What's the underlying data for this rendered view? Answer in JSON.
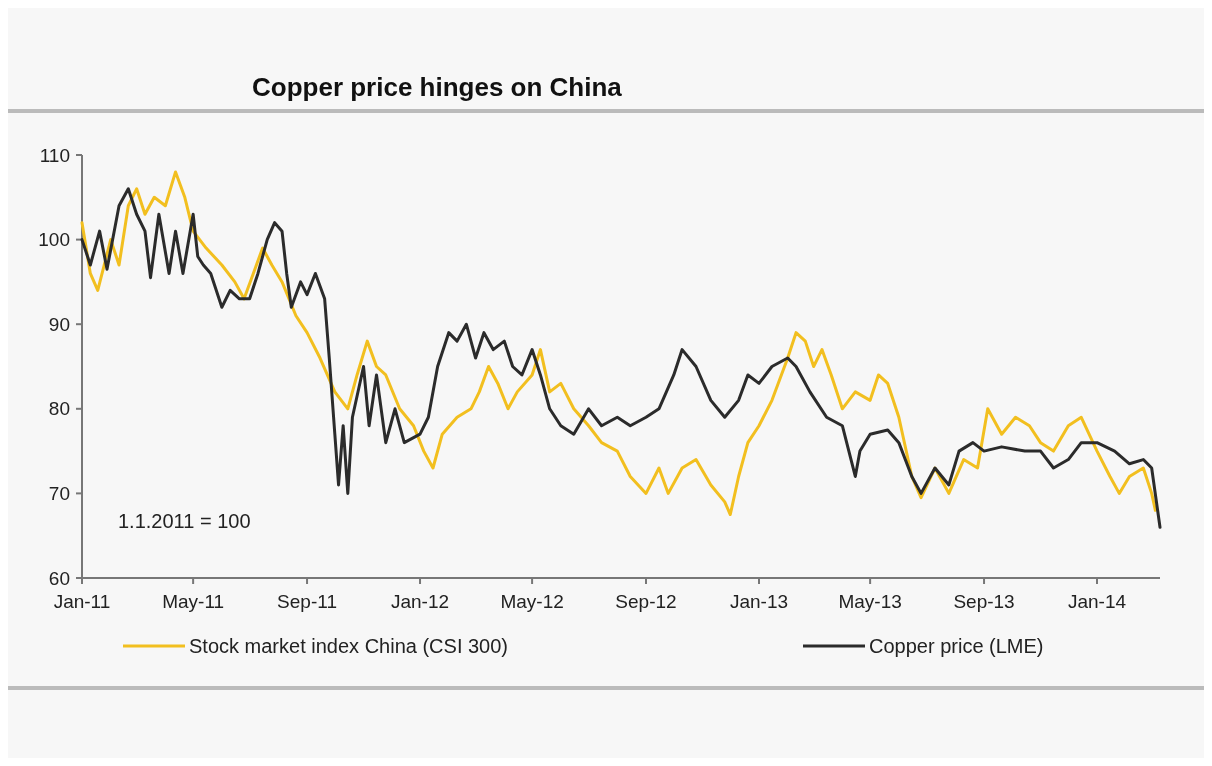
{
  "chart_data": {
    "type": "line",
    "title": "Copper price hinges on China",
    "annotations": [
      "1.1.2011 = 100"
    ],
    "xlim": [
      "2011-01-01",
      "2014-03-10"
    ],
    "xticks": [
      {
        "value": "2011-01-01",
        "label": "Jan-11"
      },
      {
        "value": "2011-05-01",
        "label": "May-11"
      },
      {
        "value": "2011-09-01",
        "label": "Sep-11"
      },
      {
        "value": "2012-01-01",
        "label": "Jan-12"
      },
      {
        "value": "2012-05-01",
        "label": "May-12"
      },
      {
        "value": "2012-09-01",
        "label": "Sep-12"
      },
      {
        "value": "2013-01-01",
        "label": "Jan-13"
      },
      {
        "value": "2013-05-01",
        "label": "May-13"
      },
      {
        "value": "2013-09-01",
        "label": "Sep-13"
      },
      {
        "value": "2014-01-01",
        "label": "Jan-14"
      }
    ],
    "ylim": [
      60,
      110
    ],
    "yticks": [
      60,
      70,
      80,
      90,
      100,
      110
    ],
    "grid": false,
    "legend": "bottom",
    "marker": "none",
    "line_style": "solid",
    "series": [
      {
        "name": "Stock market index China (CSI 300)",
        "color": "#f2bf1f",
        "x": [
          "2011-01-01",
          "2011-01-10",
          "2011-01-18",
          "2011-02-01",
          "2011-02-10",
          "2011-02-20",
          "2011-03-01",
          "2011-03-10",
          "2011-03-20",
          "2011-04-01",
          "2011-04-12",
          "2011-04-22",
          "2011-05-01",
          "2011-05-15",
          "2011-06-01",
          "2011-06-15",
          "2011-06-25",
          "2011-07-05",
          "2011-07-15",
          "2011-07-25",
          "2011-08-05",
          "2011-08-20",
          "2011-09-01",
          "2011-09-15",
          "2011-10-01",
          "2011-10-15",
          "2011-10-25",
          "2011-11-05",
          "2011-11-15",
          "2011-11-25",
          "2011-12-10",
          "2011-12-25",
          "2012-01-05",
          "2012-01-15",
          "2012-01-25",
          "2012-02-10",
          "2012-02-25",
          "2012-03-05",
          "2012-03-15",
          "2012-03-25",
          "2012-04-05",
          "2012-04-15",
          "2012-05-01",
          "2012-05-10",
          "2012-05-20",
          "2012-06-01",
          "2012-06-15",
          "2012-07-01",
          "2012-07-15",
          "2012-08-01",
          "2012-08-15",
          "2012-09-01",
          "2012-09-15",
          "2012-09-25",
          "2012-10-10",
          "2012-10-25",
          "2012-11-10",
          "2012-11-25",
          "2012-12-01",
          "2012-12-10",
          "2012-12-20",
          "2013-01-01",
          "2013-01-15",
          "2013-02-01",
          "2013-02-10",
          "2013-02-20",
          "2013-03-01",
          "2013-03-10",
          "2013-03-20",
          "2013-04-01",
          "2013-04-15",
          "2013-05-01",
          "2013-05-10",
          "2013-05-20",
          "2013-06-01",
          "2013-06-15",
          "2013-06-25",
          "2013-07-10",
          "2013-07-25",
          "2013-08-10",
          "2013-08-25",
          "2013-09-05",
          "2013-09-20",
          "2013-10-05",
          "2013-10-20",
          "2013-11-01",
          "2013-11-15",
          "2013-12-01",
          "2013-12-15",
          "2014-01-01",
          "2014-01-15",
          "2014-01-25",
          "2014-02-05",
          "2014-02-20",
          "2014-03-01",
          "2014-03-05"
        ],
        "values": [
          102,
          96,
          94,
          100,
          97,
          104,
          106,
          103,
          105,
          104,
          108,
          105,
          101,
          99,
          97,
          95,
          93,
          96,
          99,
          97,
          95,
          91,
          89,
          86,
          82,
          80,
          84,
          88,
          85,
          84,
          80,
          78,
          75,
          73,
          77,
          79,
          80,
          82,
          85,
          83,
          80,
          82,
          84,
          87,
          82,
          83,
          80,
          78,
          76,
          75,
          72,
          70,
          73,
          70,
          73,
          74,
          71,
          69,
          67.5,
          72,
          76,
          78,
          81,
          86,
          89,
          88,
          85,
          87,
          84,
          80,
          82,
          81,
          84,
          83,
          79,
          72,
          69.5,
          73,
          70,
          74,
          73,
          80,
          77,
          79,
          78,
          76,
          75,
          78,
          79,
          75,
          72,
          70,
          72,
          73,
          70,
          68
        ]
      },
      {
        "name": "Copper price (LME)",
        "color": "#2b2b2b",
        "x": [
          "2011-01-01",
          "2011-01-10",
          "2011-01-20",
          "2011-01-28",
          "2011-02-10",
          "2011-02-20",
          "2011-03-01",
          "2011-03-10",
          "2011-03-16",
          "2011-03-25",
          "2011-04-05",
          "2011-04-12",
          "2011-04-20",
          "2011-05-01",
          "2011-05-06",
          "2011-05-12",
          "2011-05-20",
          "2011-06-01",
          "2011-06-10",
          "2011-06-20",
          "2011-07-01",
          "2011-07-10",
          "2011-07-20",
          "2011-07-28",
          "2011-08-05",
          "2011-08-10",
          "2011-08-15",
          "2011-08-25",
          "2011-09-01",
          "2011-09-10",
          "2011-09-20",
          "2011-09-25",
          "2011-10-01",
          "2011-10-05",
          "2011-10-10",
          "2011-10-15",
          "2011-10-20",
          "2011-11-01",
          "2011-11-07",
          "2011-11-15",
          "2011-11-25",
          "2011-12-05",
          "2011-12-15",
          "2012-01-01",
          "2012-01-10",
          "2012-01-20",
          "2012-02-01",
          "2012-02-10",
          "2012-02-20",
          "2012-03-01",
          "2012-03-10",
          "2012-03-20",
          "2012-04-01",
          "2012-04-10",
          "2012-04-20",
          "2012-05-01",
          "2012-05-10",
          "2012-05-20",
          "2012-06-01",
          "2012-06-15",
          "2012-07-01",
          "2012-07-15",
          "2012-08-01",
          "2012-08-15",
          "2012-09-01",
          "2012-09-15",
          "2012-10-01",
          "2012-10-10",
          "2012-10-25",
          "2012-11-10",
          "2012-11-25",
          "2012-12-10",
          "2012-12-20",
          "2013-01-01",
          "2013-01-15",
          "2013-02-01",
          "2013-02-10",
          "2013-02-25",
          "2013-03-15",
          "2013-04-01",
          "2013-04-15",
          "2013-04-20",
          "2013-05-01",
          "2013-05-20",
          "2013-06-01",
          "2013-06-15",
          "2013-06-25",
          "2013-07-10",
          "2013-07-25",
          "2013-08-05",
          "2013-08-20",
          "2013-09-01",
          "2013-09-20",
          "2013-10-15",
          "2013-11-01",
          "2013-11-15",
          "2013-12-01",
          "2013-12-15",
          "2014-01-01",
          "2014-01-20",
          "2014-02-05",
          "2014-02-20",
          "2014-03-01",
          "2014-03-10"
        ],
        "values": [
          100,
          97,
          101,
          96.5,
          104,
          106,
          103,
          101,
          95.5,
          103,
          96,
          101,
          96,
          103,
          98,
          97,
          96,
          92,
          94,
          93,
          93,
          96,
          100,
          102,
          101,
          96,
          92,
          95,
          93.5,
          96,
          93,
          86,
          77,
          71,
          78,
          70,
          79,
          85,
          78,
          84,
          76,
          80,
          76,
          77,
          79,
          85,
          89,
          88,
          90,
          86,
          89,
          87,
          88,
          85,
          84,
          87,
          84,
          80,
          78,
          77,
          80,
          78,
          79,
          78,
          79,
          80,
          84,
          87,
          85,
          81,
          79,
          81,
          84,
          83,
          85,
          86,
          85,
          82,
          79,
          78,
          72,
          75,
          77,
          77.5,
          76,
          72,
          70,
          73,
          71,
          75,
          76,
          75,
          75.5,
          75,
          75,
          73,
          74,
          76,
          76,
          75,
          73.5,
          74,
          73,
          66
        ]
      }
    ]
  }
}
